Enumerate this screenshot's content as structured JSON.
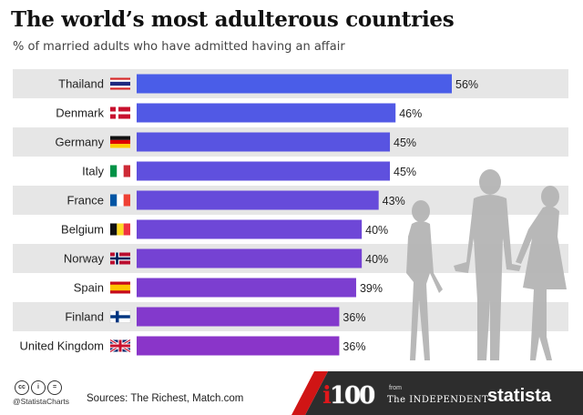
{
  "header": {
    "title": "The world’s most adulterous countries",
    "subtitle": "% of married adults who have admitted having an affair"
  },
  "colors": {
    "bar_start": "#4a5de8",
    "bar_end": "#8a35c9",
    "row_band": "#e6e6e6",
    "footer_dark": "#2d2d2d",
    "footer_red": "#d01515"
  },
  "chart_data": {
    "type": "bar",
    "orientation": "horizontal",
    "categories": [
      "Thailand",
      "Denmark",
      "Germany",
      "Italy",
      "France",
      "Belgium",
      "Norway",
      "Spain",
      "Finland",
      "United Kingdom"
    ],
    "values": [
      56,
      46,
      45,
      45,
      43,
      40,
      40,
      39,
      36,
      36
    ],
    "value_labels": [
      "56%",
      "46%",
      "45%",
      "45%",
      "43%",
      "40%",
      "40%",
      "39%",
      "36%",
      "36%"
    ],
    "flags": [
      "thailand-flag-icon",
      "denmark-flag-icon",
      "germany-flag-icon",
      "italy-flag-icon",
      "france-flag-icon",
      "belgium-flag-icon",
      "norway-flag-icon",
      "spain-flag-icon",
      "finland-flag-icon",
      "united-kingdom-flag-icon"
    ],
    "xlim": [
      0,
      56
    ],
    "grid": false,
    "legend": "none"
  },
  "footer": {
    "handle": "@StatistaCharts",
    "sources": "Sources: The Richest, Match.com",
    "i100_i": "i",
    "i100_num": "100",
    "from": "from",
    "independent": "The INDEPENDENT",
    "brand": "statista"
  }
}
